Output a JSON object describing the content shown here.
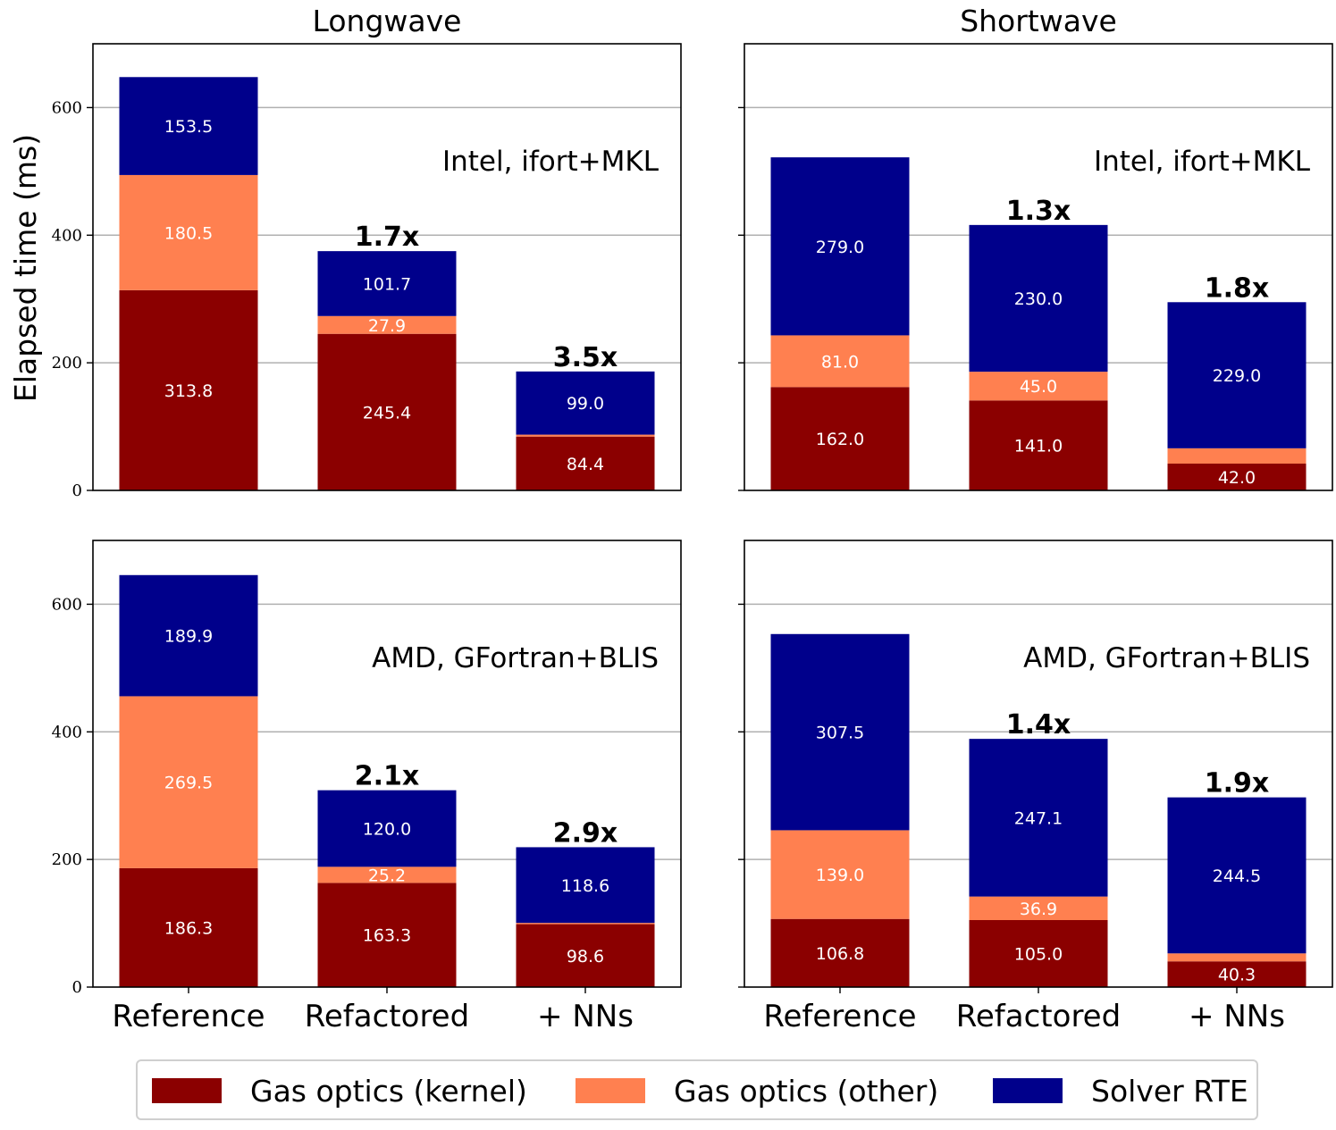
{
  "chart_data": {
    "type": "bar",
    "stacked": true,
    "ylabel": "Elapsed time (ms)",
    "ylim": [
      0,
      700
    ],
    "yticks": [
      0,
      200,
      400,
      600
    ],
    "categories": [
      "Reference",
      "Refactored",
      "+ NNs"
    ],
    "grid": "horizontal",
    "legend": "bottom",
    "colors": {
      "Gas optics (kernel)": "#8b0000",
      "Gas optics (other)": "#ff8050",
      "Solver RTE": "#00008b"
    },
    "panels": [
      {
        "title": "Longwave",
        "annotation": "Intel, ifort+MKL",
        "series": [
          {
            "name": "Gas optics (kernel)",
            "values": [
              313.8,
              245.4,
              84.4
            ],
            "labels": [
              "313.8",
              "245.4",
              "84.4"
            ]
          },
          {
            "name": "Gas optics (other)",
            "values": [
              180.5,
              27.9,
              3.0
            ],
            "labels": [
              "180.5",
              "27.9",
              ""
            ]
          },
          {
            "name": "Solver RTE",
            "values": [
              153.5,
              101.7,
              99.0
            ],
            "labels": [
              "153.5",
              "101.7",
              "99.0"
            ]
          }
        ],
        "speedups": [
          "",
          "1.7x",
          "3.5x"
        ]
      },
      {
        "title": "Shortwave",
        "annotation": "Intel, ifort+MKL",
        "series": [
          {
            "name": "Gas optics (kernel)",
            "values": [
              162.0,
              141.0,
              42.0
            ],
            "labels": [
              "162.0",
              "141.0",
              "42.0"
            ]
          },
          {
            "name": "Gas optics (other)",
            "values": [
              81.0,
              45.0,
              24.0
            ],
            "labels": [
              "81.0",
              "45.0",
              ""
            ]
          },
          {
            "name": "Solver RTE",
            "values": [
              279.0,
              230.0,
              229.0
            ],
            "labels": [
              "279.0",
              "230.0",
              "229.0"
            ]
          }
        ],
        "speedups": [
          "",
          "1.3x",
          "1.8x"
        ]
      },
      {
        "title": "",
        "annotation": "AMD, GFortran+BLIS",
        "series": [
          {
            "name": "Gas optics (kernel)",
            "values": [
              186.3,
              163.3,
              98.6
            ],
            "labels": [
              "186.3",
              "163.3",
              "98.6"
            ]
          },
          {
            "name": "Gas optics (other)",
            "values": [
              269.5,
              25.2,
              2.0
            ],
            "labels": [
              "269.5",
              "25.2",
              ""
            ]
          },
          {
            "name": "Solver RTE",
            "values": [
              189.9,
              120.0,
              118.6
            ],
            "labels": [
              "189.9",
              "120.0",
              "118.6"
            ]
          }
        ],
        "speedups": [
          "",
          "2.1x",
          "2.9x"
        ]
      },
      {
        "title": "",
        "annotation": "AMD, GFortran+BLIS",
        "series": [
          {
            "name": "Gas optics (kernel)",
            "values": [
              106.8,
              105.0,
              40.3
            ],
            "labels": [
              "106.8",
              "105.0",
              "40.3"
            ]
          },
          {
            "name": "Gas optics (other)",
            "values": [
              139.0,
              36.9,
              12.5
            ],
            "labels": [
              "139.0",
              "36.9",
              ""
            ]
          },
          {
            "name": "Solver RTE",
            "values": [
              307.5,
              247.1,
              244.5
            ],
            "labels": [
              "307.5",
              "247.1",
              "244.5"
            ]
          }
        ],
        "speedups": [
          "",
          "1.4x",
          "1.9x"
        ]
      }
    ]
  }
}
